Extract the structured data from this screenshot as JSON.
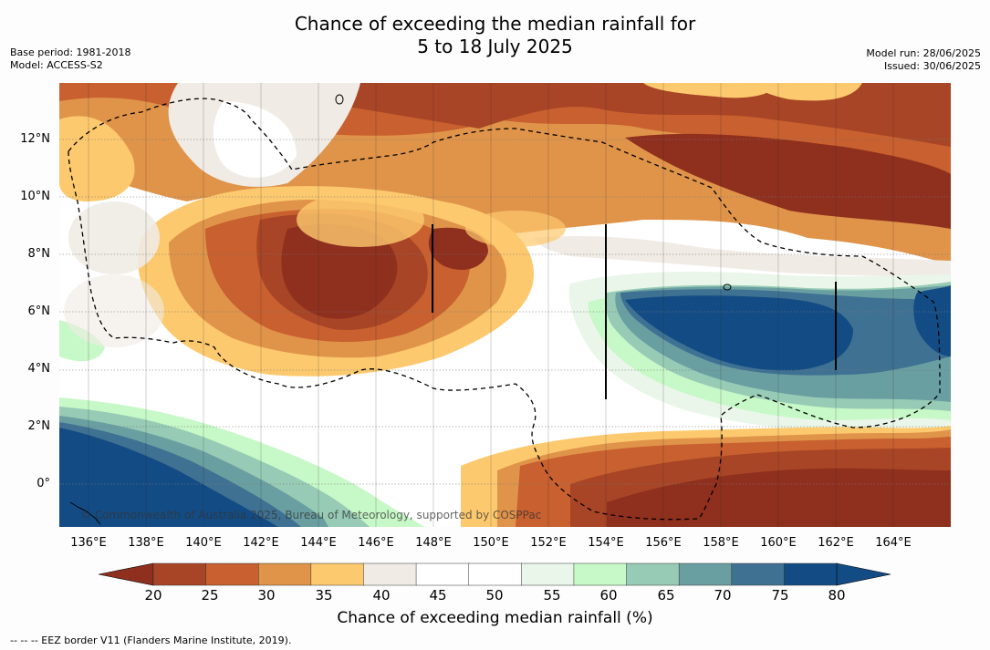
{
  "title": {
    "line1": "Chance of exceeding the median rainfall for",
    "line2": "5 to 18 July 2025"
  },
  "meta_left": {
    "base_period": "Base period: 1981-2018",
    "model": "Model: ACCESS-S2"
  },
  "meta_right": {
    "model_run": "Model run: 28/06/2025",
    "issued": "Issued: 30/06/2025"
  },
  "lat_labels": [
    "12°N",
    "10°N",
    "8°N",
    "6°N",
    "4°N",
    "2°N",
    "0°"
  ],
  "lon_labels": [
    "136°E",
    "138°E",
    "140°E",
    "142°E",
    "144°E",
    "146°E",
    "148°E",
    "150°E",
    "152°E",
    "154°E",
    "156°E",
    "158°E",
    "160°E",
    "162°E",
    "164°E"
  ],
  "credit": "© Commonwealth of Australia 2025, Bureau of Meteorology, supported by COSPPac",
  "colorbar": {
    "ticks": [
      "20",
      "25",
      "30",
      "35",
      "40",
      "45",
      "50",
      "55",
      "60",
      "65",
      "70",
      "75",
      "80"
    ],
    "colors": [
      "#8f2f1e",
      "#a84526",
      "#c8602f",
      "#e0944a",
      "#fdc96e",
      "#f0ebe4",
      "#ffffff",
      "#ffffff",
      "#e9f6e9",
      "#c7f8c7",
      "#97cbb5",
      "#6a9fa2",
      "#3f7193",
      "#134c85",
      "#134c85"
    ],
    "label": "Chance of exceeding median rainfall (%)"
  },
  "footnote": "--  --  -- EEZ border V11 (Flanders Marine Institute, 2019)."
}
